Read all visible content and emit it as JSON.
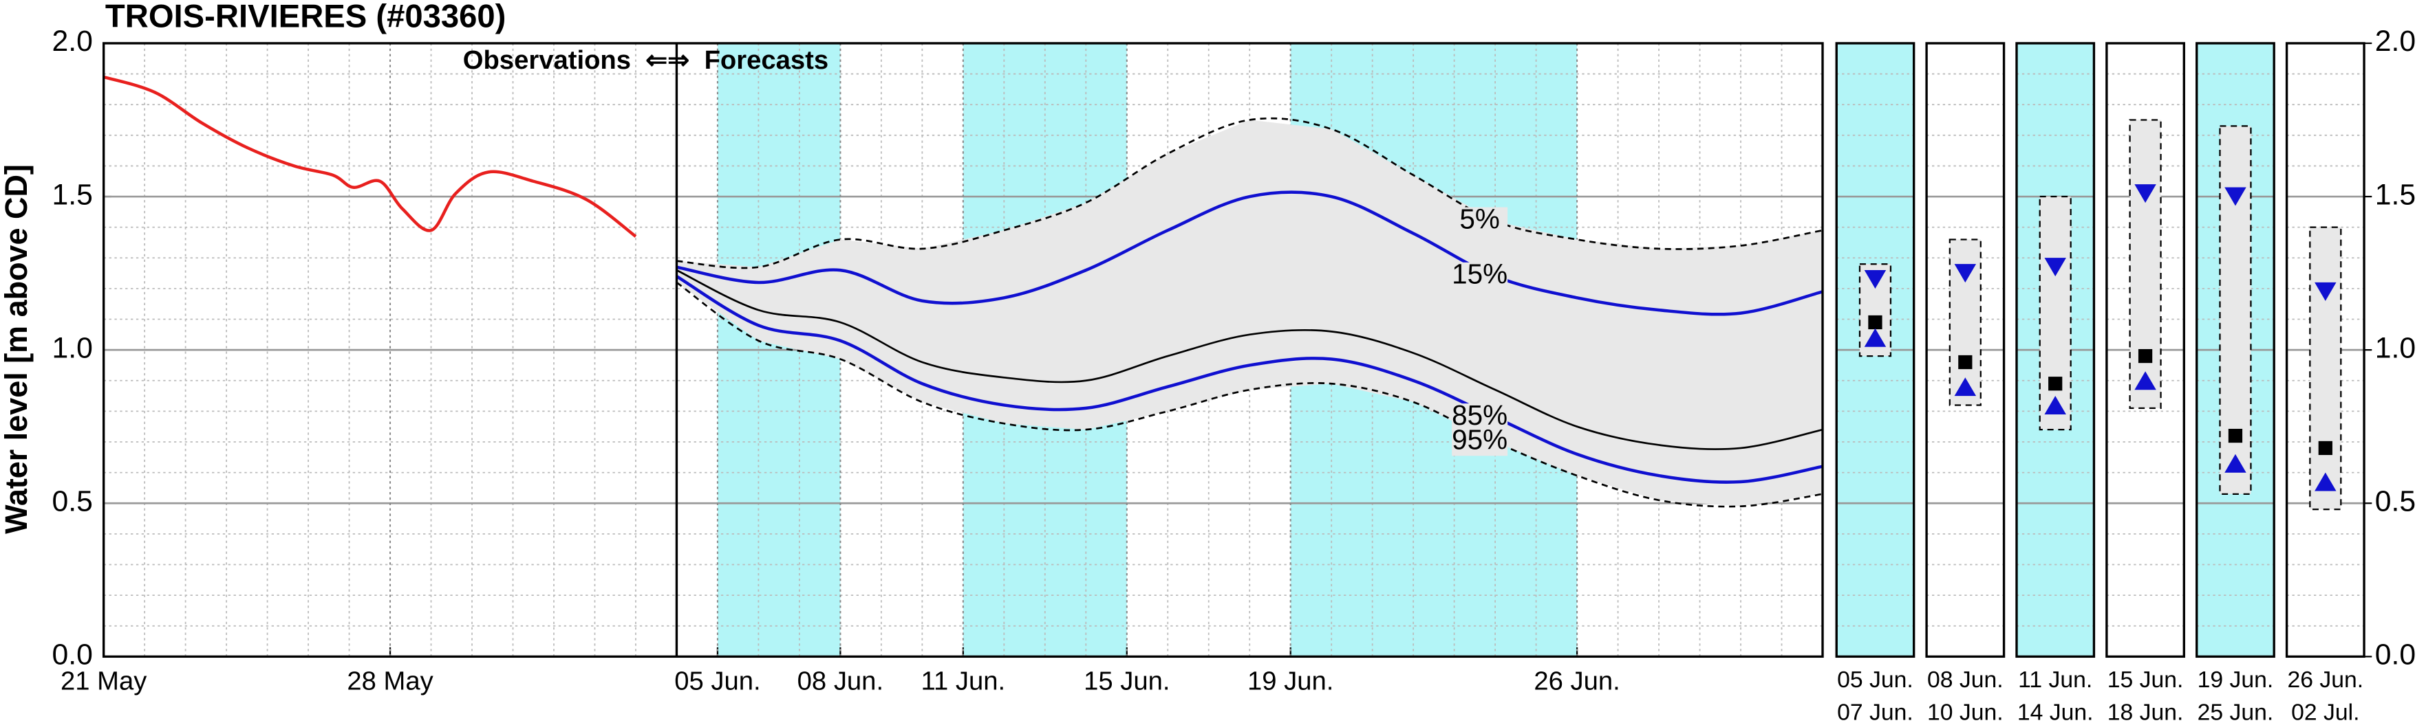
{
  "chart_data": [
    {
      "type": "line",
      "title": "TROIS-RIVIERES (#03360)",
      "y_label": "Water level [m above CD]",
      "annotation": "Observations  ⇐⇒  Forecasts",
      "forecast_start": 14,
      "xlim": [
        0,
        42
      ],
      "xticks": [
        {
          "value": 0,
          "label": "21 May"
        },
        {
          "value": 7,
          "label": "28 May"
        },
        {
          "value": 15,
          "label": "05 Jun."
        },
        {
          "value": 18,
          "label": "08 Jun."
        },
        {
          "value": 21,
          "label": "11 Jun."
        },
        {
          "value": 25,
          "label": "15 Jun."
        },
        {
          "value": 29,
          "label": "19 Jun."
        },
        {
          "value": 36,
          "label": "26 Jun."
        }
      ],
      "ylim": [
        0,
        2
      ],
      "yticks": [
        {
          "value": 0,
          "label": "0.0"
        },
        0.5,
        {
          "value": 1,
          "label": "1.0"
        },
        1.5,
        {
          "value": 2,
          "label": "2.0"
        }
      ],
      "grid": true,
      "shaded_periods": [
        [
          15,
          18
        ],
        [
          21,
          25
        ],
        [
          29,
          36
        ]
      ],
      "shade_color": "#b3f5f7",
      "band_color": "#e8e8e8",
      "series": [
        {
          "name": "5%",
          "color": "#000000",
          "dashed": true,
          "x": [
            14,
            16,
            18,
            20,
            22,
            24,
            26,
            28,
            30,
            32,
            34,
            36,
            38,
            40,
            42
          ],
          "values": [
            1.29,
            1.27,
            1.36,
            1.33,
            1.39,
            1.48,
            1.64,
            1.75,
            1.72,
            1.57,
            1.42,
            1.36,
            1.33,
            1.34,
            1.39
          ]
        },
        {
          "name": "15%",
          "color": "#1010d0",
          "x": [
            14,
            16,
            18,
            20,
            22,
            24,
            26,
            28,
            30,
            32,
            34,
            36,
            38,
            40,
            42
          ],
          "values": [
            1.27,
            1.22,
            1.26,
            1.16,
            1.17,
            1.26,
            1.39,
            1.5,
            1.5,
            1.38,
            1.24,
            1.17,
            1.13,
            1.12,
            1.19
          ]
        },
        {
          "color": "#000000",
          "x": [
            14,
            16,
            18,
            20,
            22,
            24,
            26,
            28,
            30,
            32,
            34,
            36,
            38,
            40,
            42
          ],
          "values": [
            1.26,
            1.13,
            1.09,
            0.96,
            0.91,
            0.9,
            0.98,
            1.05,
            1.06,
            0.99,
            0.87,
            0.75,
            0.69,
            0.68,
            0.74
          ]
        },
        {
          "name": "85%",
          "color": "#1010d0",
          "x": [
            14,
            16,
            18,
            20,
            22,
            24,
            26,
            28,
            30,
            32,
            34,
            36,
            38,
            40,
            42
          ],
          "values": [
            1.24,
            1.08,
            1.03,
            0.89,
            0.82,
            0.81,
            0.88,
            0.95,
            0.97,
            0.9,
            0.78,
            0.66,
            0.59,
            0.57,
            0.62
          ]
        },
        {
          "name": "95%",
          "color": "#000000",
          "dashed": true,
          "x": [
            14,
            16,
            18,
            20,
            22,
            24,
            26,
            28,
            30,
            32,
            34,
            36,
            38,
            40,
            42
          ],
          "values": [
            1.22,
            1.03,
            0.97,
            0.83,
            0.76,
            0.74,
            0.8,
            0.87,
            0.89,
            0.83,
            0.7,
            0.59,
            0.51,
            0.49,
            0.53
          ]
        },
        {
          "color": "#e8201e",
          "x": [
            0,
            1.25,
            2.4,
            3.5,
            4.65,
            5.6,
            6.1,
            6.75,
            7.3,
            8,
            8.6,
            9.4,
            10.5,
            11.8,
            13
          ],
          "values": [
            1.89,
            1.84,
            1.74,
            1.66,
            1.6,
            1.57,
            1.53,
            1.55,
            1.46,
            1.39,
            1.51,
            1.58,
            1.55,
            1.49,
            1.37
          ]
        }
      ]
    },
    {
      "type": "range",
      "categories": [
        [
          "05 Jun.",
          "07 Jun."
        ],
        [
          "08 Jun.",
          "10 Jun."
        ],
        [
          "11 Jun.",
          "14 Jun."
        ],
        [
          "15 Jun.",
          "18 Jun."
        ],
        [
          "19 Jun.",
          "25 Jun."
        ],
        [
          "26 Jun.",
          "02 Jul."
        ]
      ],
      "shaded": [
        true,
        false,
        true,
        false,
        true,
        false
      ],
      "ylim": [
        0,
        2
      ],
      "yticks": [
        {
          "value": 0,
          "label": "0.0"
        },
        0.5,
        {
          "value": 1,
          "label": "1.0"
        },
        1.5,
        {
          "value": 2,
          "label": "2.0"
        }
      ],
      "high": [
        1.28,
        1.36,
        1.5,
        1.75,
        1.73,
        1.4
      ],
      "low": [
        0.98,
        0.82,
        0.74,
        0.81,
        0.53,
        0.48
      ],
      "upper": [
        1.23,
        1.25,
        1.27,
        1.51,
        1.5,
        1.19
      ],
      "median": [
        1.09,
        0.96,
        0.89,
        0.98,
        0.72,
        0.68
      ],
      "lower": [
        1.04,
        0.88,
        0.82,
        0.9,
        0.63,
        0.57
      ],
      "marker_color": "#1010d0"
    }
  ]
}
